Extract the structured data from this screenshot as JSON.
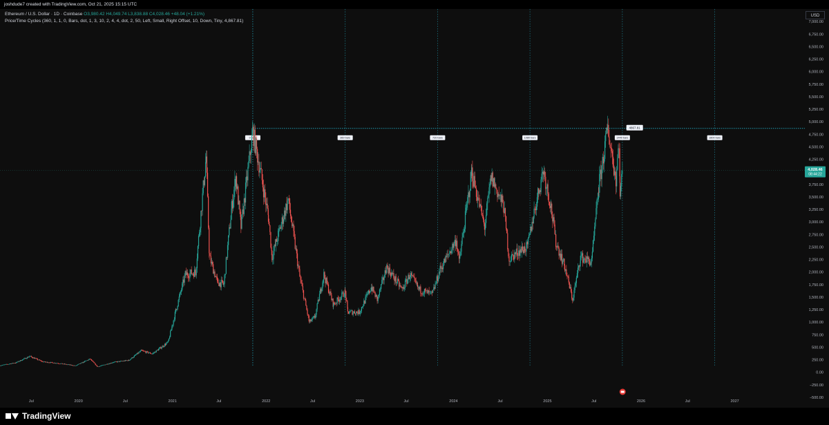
{
  "header": {
    "author_line": "joshdude7 created with TradingView.com, Oct 21, 2025 15:15 UTC"
  },
  "legend": {
    "symbol": "Ethereum / U.S. Dollar · 1D · Coinbase",
    "ohlc": "O3,980.42 H4,049.74 L3,838.88 C4,028.46 +48.04 (+1.21%)",
    "indicator": "Price/Time Cycles (360, 1, 1, 0, Bars, dot, 1, 3, 10, 2, 4, 4, dot, 2, 50, Left, Small, Right Offset, 10, Down, Tiny, 4,867.81)"
  },
  "currency_label": "USD",
  "brand": {
    "name": "TradingView",
    "logo_icon": "tradingview-logo-icon"
  },
  "colors": {
    "up": "#26a69a",
    "down": "#ef5350",
    "cycle_line": "#1e9bb0",
    "background": "#0e0e0e",
    "price_tag": "#26a69a"
  },
  "chart_data": {
    "type": "candlestick",
    "y_scale": "linear",
    "ylim": [
      -500,
      7250
    ],
    "yticks": [
      -500,
      -250,
      0,
      250,
      500,
      750,
      1000,
      1250,
      1500,
      1750,
      2000,
      2250,
      2500,
      2750,
      3000,
      3250,
      3500,
      3750,
      4000,
      4250,
      4500,
      4750,
      5000,
      5250,
      5500,
      5750,
      6000,
      6250,
      6500,
      6750,
      7000
    ],
    "ytick_labels": [
      "−500.00",
      "−250.00",
      "0.00",
      "250.00",
      "500.00",
      "750.00",
      "1,000.00",
      "1,250.00",
      "1,500.00",
      "1,750.00",
      "2,000.00",
      "2,250.00",
      "2,500.00",
      "2,750.00",
      "3,000.00",
      "3,250.00",
      "3,500.00",
      "3,750.00",
      "4,000.00",
      "4,250.00",
      "4,500.00",
      "4,750.00",
      "5,000.00",
      "5,250.00",
      "5,500.00",
      "5,750.00",
      "6,000.00",
      "6,250.00",
      "6,500.00",
      "6,750.00",
      "7,000.00"
    ],
    "xlim": [
      "2019-03-01",
      "2027-10-01"
    ],
    "xticks": [
      {
        "date": "2019-07-01",
        "label": "Jul"
      },
      {
        "date": "2020-01-01",
        "label": "2020"
      },
      {
        "date": "2020-07-01",
        "label": "Jul"
      },
      {
        "date": "2021-01-01",
        "label": "2021"
      },
      {
        "date": "2021-07-01",
        "label": "Jul"
      },
      {
        "date": "2022-01-01",
        "label": "2022"
      },
      {
        "date": "2022-07-01",
        "label": "Jul"
      },
      {
        "date": "2023-01-01",
        "label": "2023"
      },
      {
        "date": "2023-07-01",
        "label": "Jul"
      },
      {
        "date": "2024-01-01",
        "label": "2024"
      },
      {
        "date": "2024-07-01",
        "label": "Jul"
      },
      {
        "date": "2025-01-01",
        "label": "2025"
      },
      {
        "date": "2025-07-01",
        "label": "Jul"
      },
      {
        "date": "2026-01-01",
        "label": "2026"
      },
      {
        "date": "2026-07-01",
        "label": "Jul"
      },
      {
        "date": "2027-01-01",
        "label": "2027"
      }
    ],
    "price_path": [
      [
        "2019-03-01",
        135
      ],
      [
        "2019-05-01",
        190
      ],
      [
        "2019-06-25",
        320
      ],
      [
        "2019-08-15",
        210
      ],
      [
        "2019-10-15",
        180
      ],
      [
        "2019-12-20",
        130
      ],
      [
        "2020-02-15",
        265
      ],
      [
        "2020-03-15",
        110
      ],
      [
        "2020-05-15",
        200
      ],
      [
        "2020-07-15",
        240
      ],
      [
        "2020-09-01",
        430
      ],
      [
        "2020-10-15",
        370
      ],
      [
        "2020-12-15",
        600
      ],
      [
        "2021-01-15",
        1250
      ],
      [
        "2021-02-20",
        1950
      ],
      [
        "2021-04-01",
        2000
      ],
      [
        "2021-05-12",
        4300
      ],
      [
        "2021-05-25",
        2300
      ],
      [
        "2021-06-25",
        1800
      ],
      [
        "2021-07-20",
        1750
      ],
      [
        "2021-08-20",
        3300
      ],
      [
        "2021-09-05",
        3900
      ],
      [
        "2021-09-25",
        2900
      ],
      [
        "2021-11-10",
        4800
      ],
      [
        "2021-12-10",
        4000
      ],
      [
        "2022-01-10",
        3100
      ],
      [
        "2022-01-24",
        2300
      ],
      [
        "2022-03-28",
        3450
      ],
      [
        "2022-05-12",
        1900
      ],
      [
        "2022-06-18",
        1000
      ],
      [
        "2022-07-10",
        1100
      ],
      [
        "2022-08-14",
        1950
      ],
      [
        "2022-09-20",
        1350
      ],
      [
        "2022-11-05",
        1600
      ],
      [
        "2022-11-15",
        1200
      ],
      [
        "2022-12-30",
        1200
      ],
      [
        "2023-02-15",
        1700
      ],
      [
        "2023-03-10",
        1450
      ],
      [
        "2023-04-16",
        2100
      ],
      [
        "2023-06-15",
        1650
      ],
      [
        "2023-07-15",
        1950
      ],
      [
        "2023-08-20",
        1650
      ],
      [
        "2023-10-10",
        1550
      ],
      [
        "2023-11-10",
        2050
      ],
      [
        "2024-01-12",
        2650
      ],
      [
        "2024-01-23",
        2200
      ],
      [
        "2024-03-12",
        4000
      ],
      [
        "2024-05-01",
        2900
      ],
      [
        "2024-05-27",
        3900
      ],
      [
        "2024-07-15",
        3300
      ],
      [
        "2024-08-05",
        2250
      ],
      [
        "2024-09-05",
        2400
      ],
      [
        "2024-10-15",
        2500
      ],
      [
        "2024-11-10",
        3200
      ],
      [
        "2024-12-16",
        4050
      ],
      [
        "2025-01-15",
        3300
      ],
      [
        "2025-02-03",
        2600
      ],
      [
        "2025-03-10",
        2100
      ],
      [
        "2025-04-09",
        1450
      ],
      [
        "2025-05-10",
        2300
      ],
      [
        "2025-06-22",
        2200
      ],
      [
        "2025-07-20",
        3700
      ],
      [
        "2025-08-24",
        4867.81
      ],
      [
        "2025-09-25",
        3850
      ],
      [
        "2025-10-07",
        4650
      ],
      [
        "2025-10-11",
        3550
      ],
      [
        "2025-10-21",
        4028.46
      ]
    ],
    "current_price": 4028.46,
    "current_price_label": "4,028.46",
    "countdown_label": "08:44:22",
    "cycle_reference_price": 4867.81,
    "cycle_reference_label": "4867.81",
    "cycle_start": "2021-11-10",
    "cycles": [
      {
        "date": "2021-11-10",
        "label": "0 bars"
      },
      {
        "date": "2022-11-05",
        "label": "360 bars"
      },
      {
        "date": "2023-10-31",
        "label": "720 bars"
      },
      {
        "date": "2024-10-25",
        "label": "1080 bars"
      },
      {
        "date": "2025-10-20",
        "label": "1440 bars"
      },
      {
        "date": "2026-10-15",
        "label": "1800 bars"
      }
    ]
  }
}
